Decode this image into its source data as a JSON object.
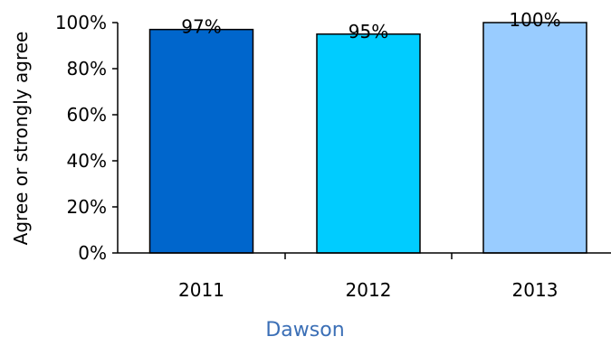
{
  "chart_data": {
    "type": "bar",
    "categories": [
      "2011",
      "2012",
      "2013"
    ],
    "values": [
      97,
      95,
      100
    ],
    "data_labels": [
      "97%",
      "95%",
      "100%"
    ],
    "ylabel": "Agree or strongly agree",
    "xlabel": "Dawson",
    "ylim": [
      0,
      100
    ],
    "yticks": [
      0,
      20,
      40,
      60,
      80,
      100
    ],
    "ytick_labels": [
      "0%",
      "20%",
      "40%",
      "60%",
      "80%",
      "100%"
    ],
    "grid": false,
    "legend": "none",
    "colors": [
      "#0066cc",
      "#00ccff",
      "#99ccff"
    ],
    "group_label_color": "#3b6fb6"
  }
}
